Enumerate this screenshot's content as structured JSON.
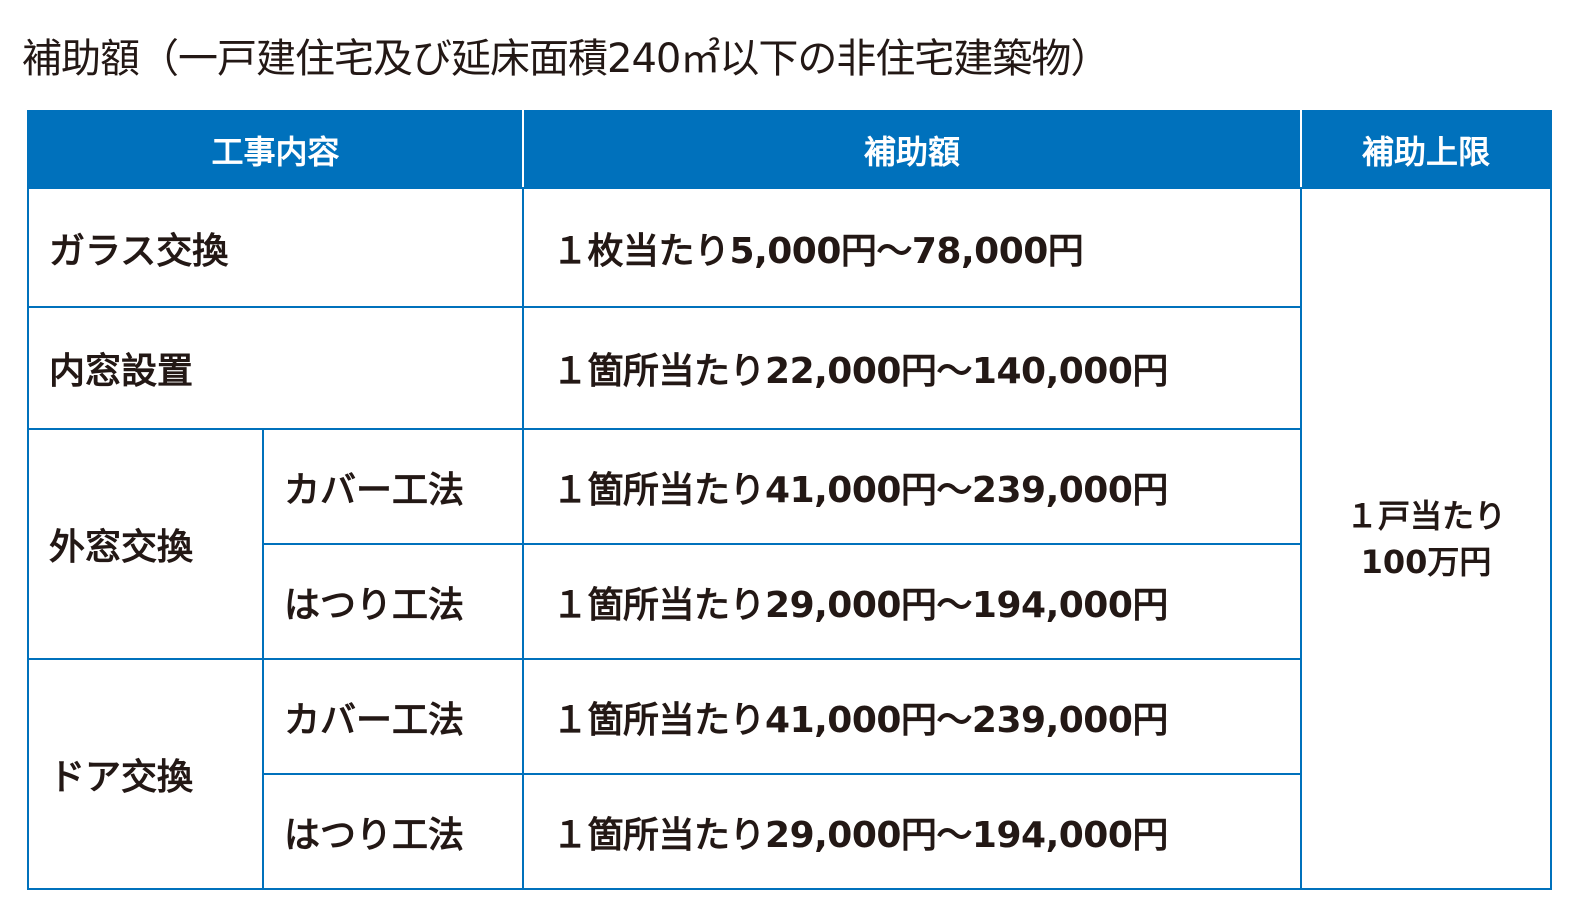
{
  "title": "補助額（一戸建住宅及び延床面積240㎡以下の非住宅建築物）",
  "colors": {
    "header_bg": "#0071bc",
    "border": "#0071bc",
    "text": "#231815"
  },
  "headers": [
    "工事内容",
    "補助額",
    "補助上限"
  ],
  "rows": [
    {
      "work": "ガラス交換",
      "amount": "１枚当たり5,000円～78,000円"
    },
    {
      "work": "内窓設置",
      "amount": "１箇所当たり22,000円～140,000円"
    },
    {
      "work": "外窓交換",
      "methods": [
        {
          "method": "カバー工法",
          "amount": "１箇所当たり41,000円～239,000円"
        },
        {
          "method": "はつり工法",
          "amount": "１箇所当たり29,000円～194,000円"
        }
      ]
    },
    {
      "work": "ドア交換",
      "methods": [
        {
          "method": "カバー工法",
          "amount": "１箇所当たり41,000円～239,000円"
        },
        {
          "method": "はつり工法",
          "amount": "１箇所当たり29,000円～194,000円"
        }
      ]
    }
  ],
  "limit": {
    "line1": "１戸当たり",
    "line2": "100万円"
  }
}
